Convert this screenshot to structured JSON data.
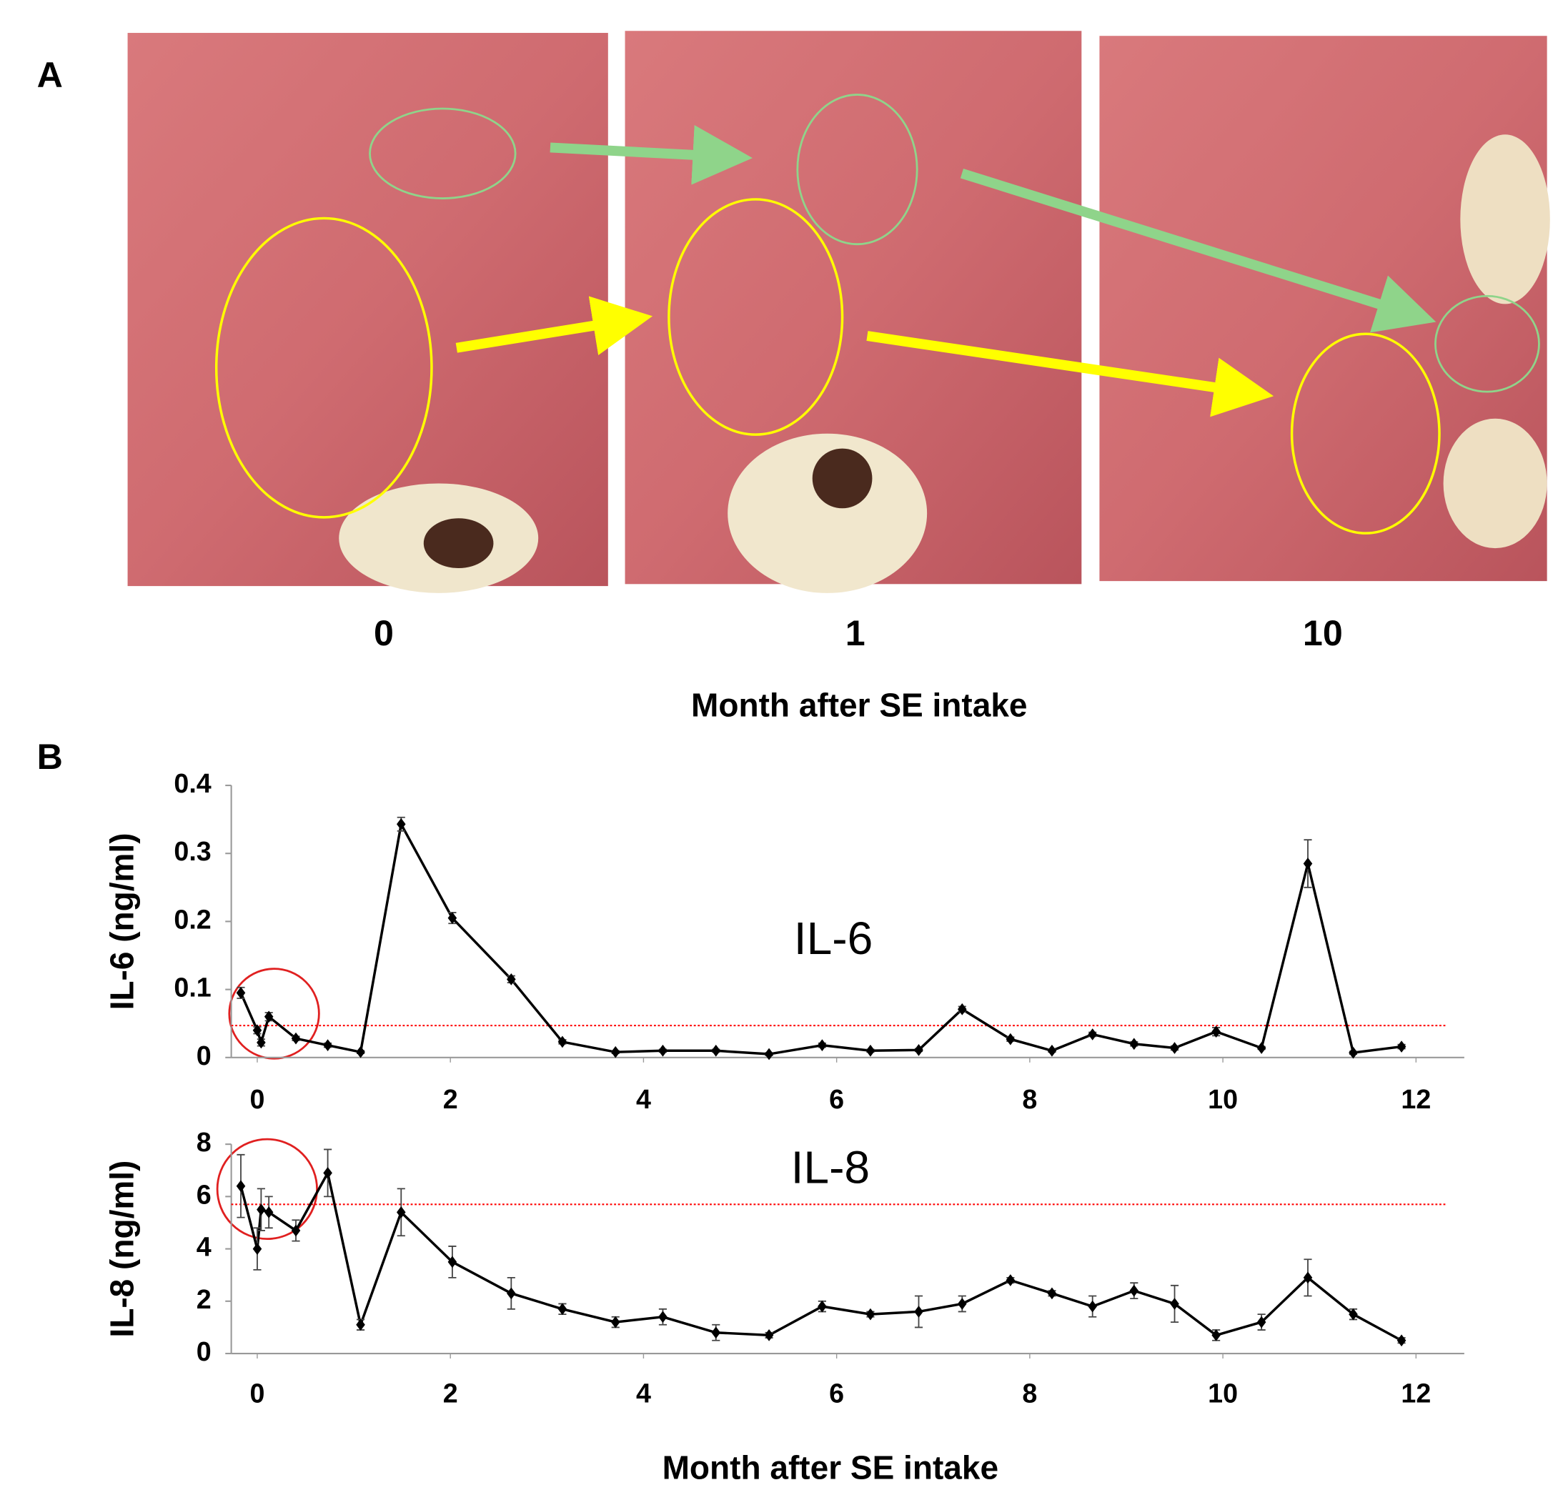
{
  "panel_a": {
    "label": "A",
    "timepoints": [
      "0",
      "1",
      "10"
    ],
    "xlabel": "Month after SE intake"
  },
  "panel_b_label": "B",
  "chart_data": [
    {
      "type": "line",
      "title": "IL-6",
      "ylabel": "IL-6 (ng/ml)",
      "x": [
        -0.17,
        0.0,
        0.04,
        0.12,
        0.4,
        0.73,
        1.07,
        1.49,
        2.02,
        2.63,
        3.16,
        3.71,
        4.2,
        4.75,
        5.3,
        5.85,
        6.35,
        6.85,
        7.3,
        7.8,
        8.23,
        8.65,
        9.08,
        9.5,
        9.93,
        10.4,
        10.88,
        11.35,
        11.85
      ],
      "series": [
        {
          "color": "#000000",
          "values": [
            0.095,
            0.04,
            0.022,
            0.06,
            0.028,
            0.018,
            0.008,
            0.343,
            0.205,
            0.115,
            0.023,
            0.008,
            0.01,
            0.01,
            0.005,
            0.018,
            0.01,
            0.011,
            0.071,
            0.027,
            0.01,
            0.034,
            0.02,
            0.014,
            0.038,
            0.014,
            0.285,
            0.007,
            0.016
          ],
          "errors": [
            0.008,
            0.005,
            0.005,
            0.006,
            0.003,
            0.003,
            0.002,
            0.01,
            0.008,
            0.005,
            0.003,
            0.002,
            0.002,
            0.002,
            0.002,
            0.003,
            0.002,
            0.002,
            0.004,
            0.003,
            0.002,
            0.003,
            0.003,
            0.003,
            0.006,
            0.002,
            0.035,
            0.002,
            0.003
          ]
        }
      ],
      "reference_line": {
        "value": 0.047,
        "color": "#ff0000"
      },
      "xlim": [
        -0.3,
        12.5
      ],
      "xticks": [
        0,
        2,
        4,
        6,
        8,
        10,
        12
      ],
      "ylim": [
        0,
        0.4
      ],
      "yticks": [
        0,
        0.1,
        0.2,
        0.3,
        0.4
      ]
    },
    {
      "type": "line",
      "title": "IL-8",
      "ylabel": "IL-8 (ng/ml)",
      "xlabel": "Month after SE intake",
      "x": [
        -0.17,
        0.0,
        0.04,
        0.12,
        0.4,
        0.73,
        1.07,
        1.49,
        2.02,
        2.63,
        3.16,
        3.71,
        4.2,
        4.75,
        5.3,
        5.85,
        6.35,
        6.85,
        7.3,
        7.8,
        8.23,
        8.65,
        9.08,
        9.5,
        9.93,
        10.4,
        10.88,
        11.35,
        11.85
      ],
      "series": [
        {
          "color": "#000000",
          "values": [
            6.4,
            4.0,
            5.5,
            5.4,
            4.7,
            6.9,
            1.1,
            5.4,
            3.5,
            2.3,
            1.7,
            1.2,
            1.4,
            0.8,
            0.7,
            1.8,
            1.5,
            1.6,
            1.9,
            2.8,
            2.3,
            1.8,
            2.4,
            1.9,
            0.7,
            1.2,
            2.9,
            1.5,
            0.5
          ],
          "errors": [
            1.2,
            0.8,
            0.8,
            0.6,
            0.4,
            0.9,
            0.2,
            0.9,
            0.6,
            0.6,
            0.2,
            0.2,
            0.3,
            0.3,
            0.1,
            0.2,
            0.1,
            0.6,
            0.3,
            0.1,
            0.1,
            0.4,
            0.3,
            0.7,
            0.2,
            0.3,
            0.7,
            0.2,
            0.1
          ]
        }
      ],
      "reference_line": {
        "value": 5.7,
        "color": "#ff0000"
      },
      "xlim": [
        -0.3,
        12.5
      ],
      "xticks": [
        0,
        2,
        4,
        6,
        8,
        10,
        12
      ],
      "ylim": [
        0,
        8
      ],
      "yticks": [
        0,
        2,
        4,
        6,
        8
      ]
    }
  ]
}
